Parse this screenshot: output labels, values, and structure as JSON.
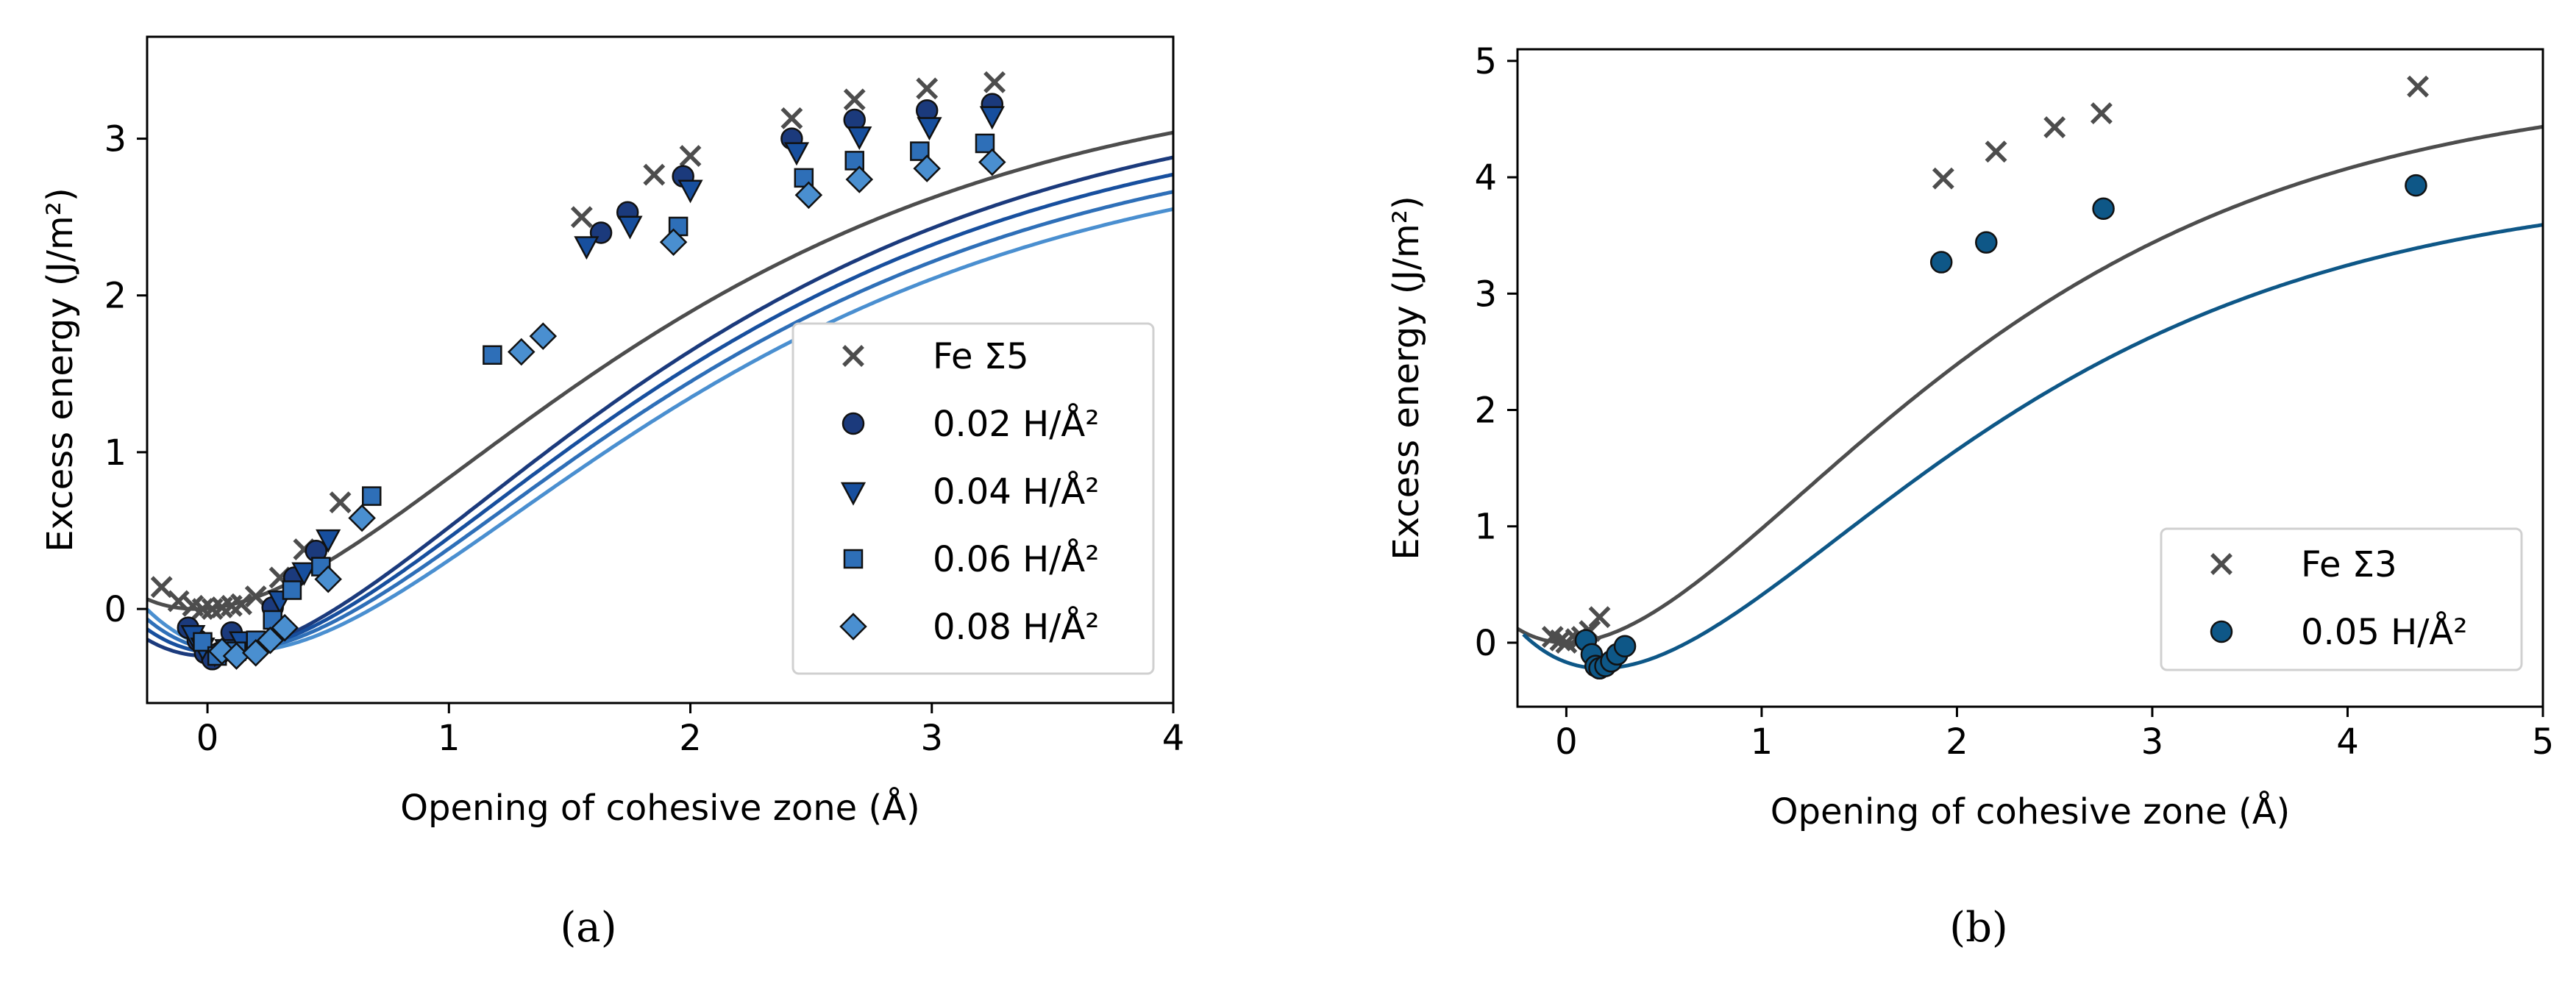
{
  "chart_data": [
    {
      "type": "scatter",
      "panel_caption": "(a)",
      "xlabel": "Opening of cohesive zone (Å)",
      "ylabel": "Excess energy (J/m²)",
      "xlim": [
        -0.25,
        4.0
      ],
      "ylim": [
        -0.6,
        3.65
      ],
      "xticks": [
        0,
        1,
        2,
        3,
        4
      ],
      "yticks": [
        0,
        1,
        2,
        3
      ],
      "grid": false,
      "legend_position": "center-right",
      "series": [
        {
          "name": "Fe Σ5",
          "marker": "x",
          "color": "#4d4d4d",
          "x": [
            -0.19,
            -0.12,
            -0.06,
            -0.02,
            0.02,
            0.06,
            0.1,
            0.14,
            0.2,
            0.3,
            0.4,
            0.55,
            1.55,
            1.85,
            2.0,
            2.42,
            2.68,
            2.98,
            3.26
          ],
          "y": [
            0.14,
            0.05,
            0.02,
            0.0,
            0.0,
            0.01,
            0.02,
            0.03,
            0.08,
            0.2,
            0.38,
            0.68,
            2.5,
            2.77,
            2.89,
            3.13,
            3.25,
            3.32,
            3.36
          ],
          "curve": {
            "e_inf": 3.47,
            "delta": 1.12,
            "x0": -0.05,
            "e_min": 0.0
          }
        },
        {
          "name": "0.02 H/Å²",
          "marker": "o",
          "color": "#1b3a7c",
          "x": [
            -0.08,
            -0.04,
            -0.01,
            0.02,
            0.05,
            0.1,
            0.27,
            0.36,
            0.45,
            1.63,
            1.74,
            1.97,
            2.42,
            2.68,
            2.98,
            3.25
          ],
          "y": [
            -0.12,
            -0.2,
            -0.28,
            -0.32,
            -0.28,
            -0.15,
            0.01,
            0.2,
            0.37,
            2.4,
            2.53,
            2.76,
            3.0,
            3.12,
            3.18,
            3.22
          ],
          "curve": {
            "e_inf": 3.35,
            "delta": 1.12,
            "x0": 0.0,
            "e_min": -0.3
          }
        },
        {
          "name": "0.04 H/Å²",
          "marker": "v",
          "color": "#174f9e",
          "x": [
            -0.06,
            -0.02,
            0.03,
            0.08,
            0.14,
            0.3,
            0.4,
            0.5,
            1.57,
            1.75,
            2.0,
            2.44,
            2.7,
            2.99,
            3.25
          ],
          "y": [
            -0.16,
            -0.24,
            -0.28,
            -0.25,
            -0.2,
            0.06,
            0.24,
            0.45,
            2.32,
            2.45,
            2.68,
            2.92,
            3.02,
            3.08,
            3.15
          ],
          "curve": {
            "e_inf": 3.24,
            "delta": 1.12,
            "x0": 0.05,
            "e_min": -0.28
          }
        },
        {
          "name": "0.06 H/Å²",
          "marker": "s",
          "color": "#2e6fb8",
          "x": [
            -0.02,
            0.04,
            0.12,
            0.2,
            0.27,
            0.35,
            0.47,
            0.68,
            1.18,
            1.95,
            2.47,
            2.68,
            2.95,
            3.22
          ],
          "y": [
            -0.21,
            -0.3,
            -0.27,
            -0.2,
            -0.07,
            0.12,
            0.27,
            0.72,
            1.62,
            2.44,
            2.75,
            2.86,
            2.92,
            2.97
          ],
          "curve": {
            "e_inf": 3.13,
            "delta": 1.12,
            "x0": 0.1,
            "e_min": -0.27
          }
        },
        {
          "name": "0.08 H/Å²",
          "marker": "D",
          "color": "#4a8fd0",
          "x": [
            0.06,
            0.12,
            0.2,
            0.26,
            0.32,
            0.5,
            0.64,
            1.3,
            1.39,
            1.93,
            2.49,
            2.7,
            2.98,
            3.25
          ],
          "y": [
            -0.27,
            -0.3,
            -0.28,
            -0.2,
            -0.12,
            0.19,
            0.58,
            1.64,
            1.74,
            2.34,
            2.64,
            2.74,
            2.81,
            2.85
          ],
          "curve": {
            "e_inf": 3.02,
            "delta": 1.12,
            "x0": 0.15,
            "e_min": -0.27
          }
        }
      ]
    },
    {
      "type": "scatter",
      "panel_caption": "(b)",
      "xlabel": "Opening of cohesive zone (Å)",
      "ylabel": "Excess energy (J/m²)",
      "xlim": [
        -0.25,
        5.0
      ],
      "ylim": [
        -0.55,
        5.1
      ],
      "xticks": [
        0,
        1,
        2,
        3,
        4,
        5
      ],
      "yticks": [
        0,
        1,
        2,
        3,
        4,
        5
      ],
      "grid": false,
      "legend_position": "lower-right",
      "series": [
        {
          "name": "Fe Σ3",
          "marker": "x",
          "color": "#4d4d4d",
          "x": [
            -0.07,
            -0.03,
            0.0,
            0.05,
            0.08,
            0.12,
            0.17,
            1.93,
            2.2,
            2.5,
            2.74,
            4.36
          ],
          "y": [
            0.05,
            0.02,
            0.0,
            0.03,
            0.05,
            0.1,
            0.22,
            3.99,
            4.22,
            4.43,
            4.55,
            4.78
          ],
          "curve": {
            "e_inf": 4.82,
            "delta": 1.2,
            "x0": 0.0,
            "e_min": 0.0
          }
        },
        {
          "name": "0.05 H/Å²",
          "marker": "o",
          "color": "#0e5787",
          "x": [
            0.1,
            0.13,
            0.15,
            0.17,
            0.2,
            0.23,
            0.26,
            0.3,
            1.92,
            2.15,
            2.75,
            4.35
          ],
          "y": [
            0.02,
            -0.1,
            -0.2,
            -0.22,
            -0.2,
            -0.16,
            -0.1,
            -0.03,
            3.27,
            3.44,
            3.73,
            3.93
          ],
          "curve": {
            "e_inf": 3.97,
            "delta": 1.2,
            "x0": 0.18,
            "e_min": -0.22
          }
        }
      ]
    }
  ]
}
